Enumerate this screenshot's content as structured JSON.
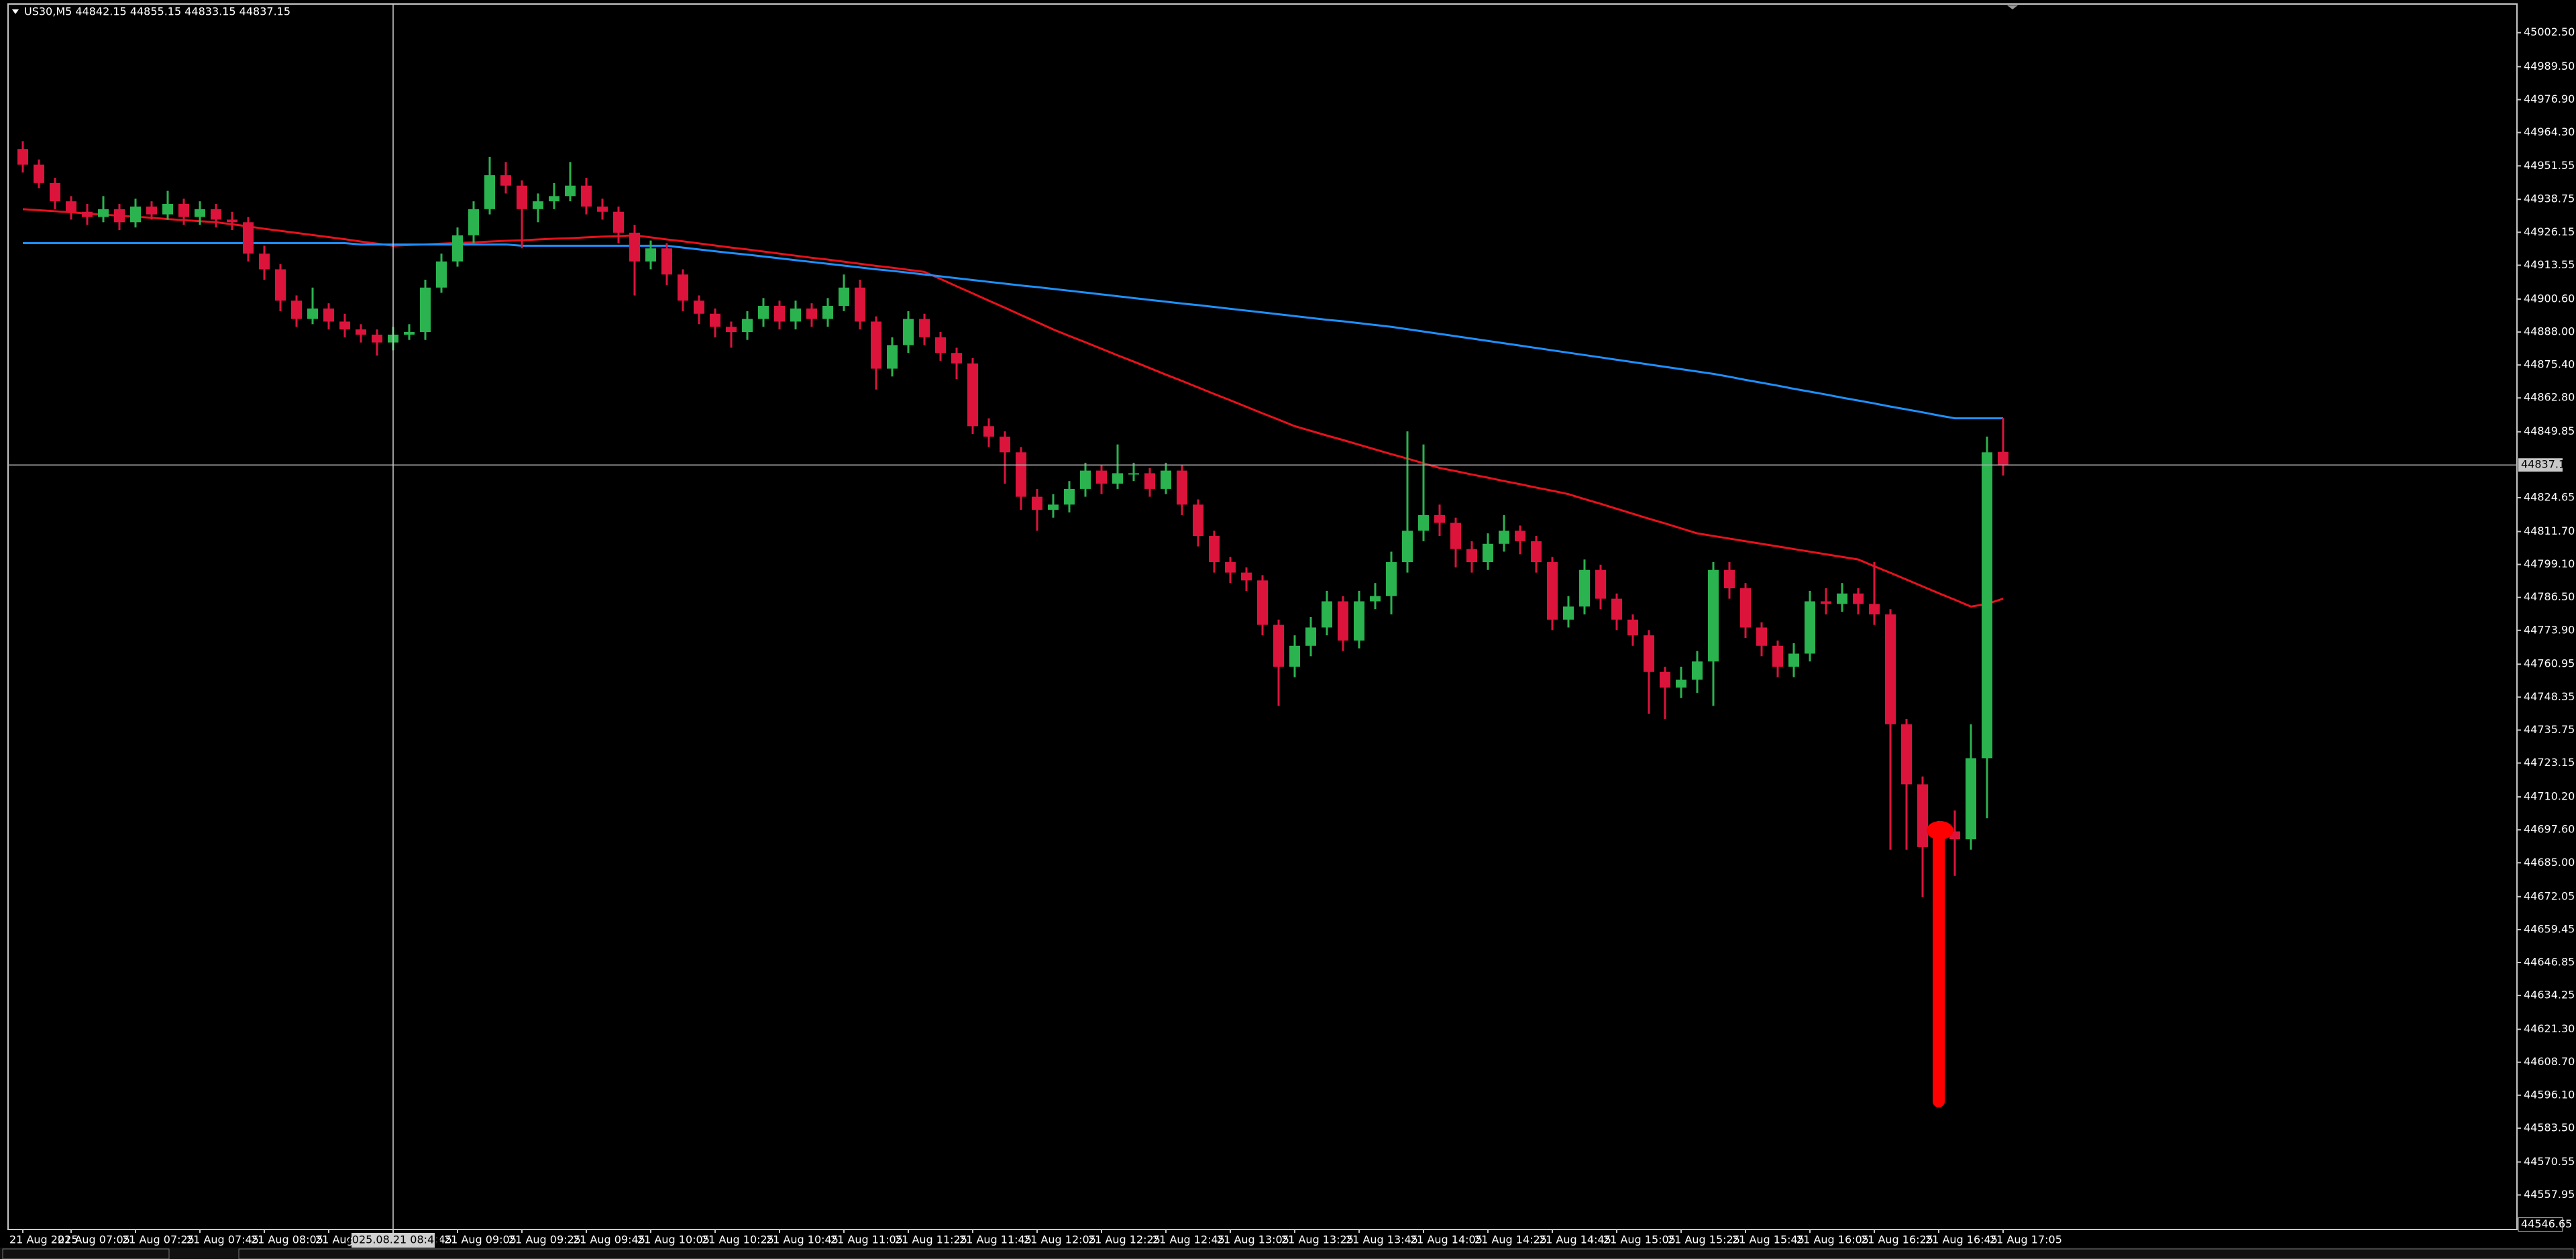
{
  "chart_data": {
    "type": "candlestick",
    "title": "US30,M5  44842.15 44855.15 44833.15 44837.15",
    "up_color": "#2bb34f",
    "down_color": "#dc143c",
    "ylim": [
      44545,
      45013.2
    ],
    "yticks": [
      {
        "value": 45002.5,
        "label": "45002.50"
      },
      {
        "value": 44989.5,
        "label": "44989.50"
      },
      {
        "value": 44976.9,
        "label": "44976.90"
      },
      {
        "value": 44964.3,
        "label": "44964.30"
      },
      {
        "value": 44951.55,
        "label": "44951.55"
      },
      {
        "value": 44938.75,
        "label": "44938.75"
      },
      {
        "value": 44926.15,
        "label": "44926.15"
      },
      {
        "value": 44913.55,
        "label": "44913.55"
      },
      {
        "value": 44900.6,
        "label": "44900.60"
      },
      {
        "value": 44888,
        "label": "44888.00"
      },
      {
        "value": 44875.4,
        "label": "44875.40"
      },
      {
        "value": 44862.8,
        "label": "44862.80"
      },
      {
        "value": 44849.85,
        "label": "44849.85"
      },
      {
        "value": 44824.65,
        "label": "44824.65"
      },
      {
        "value": 44811.7,
        "label": "44811.70"
      },
      {
        "value": 44799.1,
        "label": "44799.10"
      },
      {
        "value": 44786.5,
        "label": "44786.50"
      },
      {
        "value": 44773.9,
        "label": "44773.90"
      },
      {
        "value": 44760.95,
        "label": "44760.95"
      },
      {
        "value": 44748.35,
        "label": "44748.35"
      },
      {
        "value": 44735.75,
        "label": "44735.75"
      },
      {
        "value": 44723.15,
        "label": "44723.15"
      },
      {
        "value": 44710.2,
        "label": "44710.20"
      },
      {
        "value": 44697.6,
        "label": "44697.60"
      },
      {
        "value": 44685,
        "label": "44685.00"
      },
      {
        "value": 44672.05,
        "label": "44672.05"
      },
      {
        "value": 44659.45,
        "label": "44659.45"
      },
      {
        "value": 44646.85,
        "label": "44646.85"
      },
      {
        "value": 44634.25,
        "label": "44634.25"
      },
      {
        "value": 44621.3,
        "label": "44621.30"
      },
      {
        "value": 44608.7,
        "label": "44608.70"
      },
      {
        "value": 44596.1,
        "label": "44596.10"
      },
      {
        "value": 44583.5,
        "label": "44583.50"
      },
      {
        "value": 44570.55,
        "label": "44570.55"
      },
      {
        "value": 44557.95,
        "label": "44557.95"
      }
    ],
    "bid_line": 44837.15,
    "crosshair_price": 44546.65,
    "crosshair_time": "2025.08.21 08:45",
    "crosshair_index": 23,
    "categories": [
      "21 Aug 2025",
      null,
      null,
      "21 Aug 07:05",
      null,
      null,
      null,
      "21 Aug 07:25",
      null,
      null,
      null,
      "21 Aug 07:45",
      null,
      null,
      null,
      "21 Aug 08:05",
      null,
      null,
      null,
      "21 Aug 08:25",
      null,
      null,
      null,
      "21 Aug 08:45",
      null,
      null,
      null,
      "21 Aug 09:05",
      null,
      null,
      null,
      "21 Aug 09:25",
      null,
      null,
      null,
      "21 Aug 09:45",
      null,
      null,
      null,
      "21 Aug 10:05",
      null,
      null,
      null,
      "21 Aug 10:25",
      null,
      null,
      null,
      "21 Aug 10:45",
      null,
      null,
      null,
      "21 Aug 11:05",
      null,
      null,
      null,
      "21 Aug 11:25",
      null,
      null,
      null,
      "21 Aug 11:45",
      null,
      null,
      null,
      "21 Aug 12:05",
      null,
      null,
      null,
      "21 Aug 12:25",
      null,
      null,
      null,
      "21 Aug 12:45",
      null,
      null,
      null,
      "21 Aug 13:05",
      null,
      null,
      null,
      "21 Aug 13:25",
      null,
      null,
      null,
      "21 Aug 13:45",
      null,
      null,
      null,
      "21 Aug 14:05",
      null,
      null,
      null,
      "21 Aug 14:25",
      null,
      null,
      null,
      "21 Aug 14:45",
      null,
      null,
      null,
      "21 Aug 15:05",
      null,
      null,
      null,
      "21 Aug 15:25",
      null,
      null,
      null,
      "21 Aug 15:45",
      null,
      null,
      null,
      "21 Aug 16:05",
      null,
      null,
      null,
      "21 Aug 16:25",
      null,
      null,
      null,
      "21 Aug 16:45",
      null,
      null,
      null,
      "21 Aug 17:05"
    ],
    "candles": [
      [
        44958,
        44961,
        44949,
        44952
      ],
      [
        44952,
        44954,
        44943,
        44945
      ],
      [
        44945,
        44947,
        44935,
        44938
      ],
      [
        44938,
        44940,
        44931,
        44934
      ],
      [
        44934,
        44937,
        44929,
        44932
      ],
      [
        44932,
        44940,
        44930,
        44935
      ],
      [
        44935,
        44937,
        44927,
        44930
      ],
      [
        44930,
        44939,
        44928,
        44936
      ],
      [
        44936,
        44938,
        44931,
        44933
      ],
      [
        44933,
        44942,
        44931,
        44937
      ],
      [
        44937,
        44939,
        44929,
        44932
      ],
      [
        44932,
        44938,
        44929,
        44935
      ],
      [
        44935,
        44937,
        44928,
        44931
      ],
      [
        44931,
        44934,
        44927,
        44930
      ],
      [
        44930,
        44932,
        44915,
        44918
      ],
      [
        44918,
        44921,
        44908,
        44912
      ],
      [
        44912,
        44914,
        44896,
        44900
      ],
      [
        44900,
        44902,
        44890,
        44893
      ],
      [
        44893,
        44905,
        44891,
        44897
      ],
      [
        44897,
        44899,
        44889,
        44892
      ],
      [
        44892,
        44895,
        44886,
        44889
      ],
      [
        44889,
        44891,
        44884,
        44887
      ],
      [
        44887,
        44889,
        44879,
        44884
      ],
      [
        44884,
        44890,
        44881,
        44887
      ],
      [
        44887,
        44891,
        44885,
        44888
      ],
      [
        44888,
        44908,
        44885,
        44905
      ],
      [
        44905,
        44918,
        44903,
        44915
      ],
      [
        44915,
        44928,
        44913,
        44925
      ],
      [
        44925,
        44938,
        44922,
        44935
      ],
      [
        44935,
        44955,
        44933,
        44948
      ],
      [
        44948,
        44953,
        44941,
        44944
      ],
      [
        44944,
        44946,
        44920,
        44935
      ],
      [
        44935,
        44941,
        44930,
        44938
      ],
      [
        44938,
        44945,
        44935,
        44940
      ],
      [
        44940,
        44953,
        44938,
        44944
      ],
      [
        44944,
        44947,
        44933,
        44936
      ],
      [
        44936,
        44939,
        44931,
        44934
      ],
      [
        44934,
        44936,
        44922,
        44926
      ],
      [
        44926,
        44929,
        44902,
        44915
      ],
      [
        44915,
        44923,
        44912,
        44920
      ],
      [
        44920,
        44922,
        44906,
        44910
      ],
      [
        44910,
        44912,
        44896,
        44900
      ],
      [
        44900,
        44902,
        44891,
        44895
      ],
      [
        44895,
        44897,
        44886,
        44890
      ],
      [
        44890,
        44892,
        44882,
        44888
      ],
      [
        44888,
        44896,
        44885,
        44893
      ],
      [
        44893,
        44901,
        44890,
        44898
      ],
      [
        44898,
        44900,
        44889,
        44892
      ],
      [
        44892,
        44900,
        44889,
        44897
      ],
      [
        44897,
        44899,
        44890,
        44893
      ],
      [
        44893,
        44901,
        44890,
        44898
      ],
      [
        44898,
        44910,
        44896,
        44905
      ],
      [
        44905,
        44908,
        44889,
        44892
      ],
      [
        44892,
        44894,
        44866,
        44874
      ],
      [
        44874,
        44886,
        44871,
        44883
      ],
      [
        44883,
        44896,
        44880,
        44893
      ],
      [
        44893,
        44895,
        44883,
        44886
      ],
      [
        44886,
        44888,
        44877,
        44880
      ],
      [
        44880,
        44882,
        44870,
        44876
      ],
      [
        44876,
        44878,
        44849,
        44852
      ],
      [
        44852,
        44855,
        44844,
        44848
      ],
      [
        44848,
        44850,
        44830,
        44842
      ],
      [
        44842,
        44844,
        44820,
        44825
      ],
      [
        44825,
        44828,
        44812,
        44820
      ],
      [
        44820,
        44826,
        44817,
        44822
      ],
      [
        44822,
        44831,
        44819,
        44828
      ],
      [
        44828,
        44838,
        44825,
        44835
      ],
      [
        44835,
        44837,
        44826,
        44830
      ],
      [
        44830,
        44845,
        44828,
        44834
      ],
      [
        44834,
        44838,
        44831,
        44834
      ],
      [
        44834,
        44836,
        44825,
        44828
      ],
      [
        44828,
        44838,
        44826,
        44835
      ],
      [
        44835,
        44837,
        44818,
        44822
      ],
      [
        44822,
        44824,
        44806,
        44810
      ],
      [
        44810,
        44812,
        44796,
        44800
      ],
      [
        44800,
        44802,
        44792,
        44796
      ],
      [
        44796,
        44798,
        44789,
        44793
      ],
      [
        44793,
        44795,
        44772,
        44776
      ],
      [
        44776,
        44778,
        44745,
        44760
      ],
      [
        44760,
        44772,
        44756,
        44768
      ],
      [
        44768,
        44779,
        44764,
        44775
      ],
      [
        44775,
        44789,
        44772,
        44785
      ],
      [
        44785,
        44787,
        44766,
        44770
      ],
      [
        44770,
        44789,
        44767,
        44785
      ],
      [
        44785,
        44792,
        44782,
        44787
      ],
      [
        44787,
        44804,
        44780,
        44800
      ],
      [
        44800,
        44850,
        44796,
        44812
      ],
      [
        44812,
        44845,
        44808,
        44818
      ],
      [
        44818,
        44822,
        44810,
        44815
      ],
      [
        44815,
        44817,
        44798,
        44805
      ],
      [
        44805,
        44808,
        44796,
        44800
      ],
      [
        44800,
        44811,
        44797,
        44807
      ],
      [
        44807,
        44818,
        44804,
        44812
      ],
      [
        44812,
        44814,
        44803,
        44808
      ],
      [
        44808,
        44810,
        44796,
        44800
      ],
      [
        44800,
        44802,
        44774,
        44778
      ],
      [
        44778,
        44787,
        44775,
        44783
      ],
      [
        44783,
        44801,
        44780,
        44797
      ],
      [
        44797,
        44799,
        44782,
        44786
      ],
      [
        44786,
        44788,
        44774,
        44778
      ],
      [
        44778,
        44780,
        44768,
        44772
      ],
      [
        44772,
        44774,
        44742,
        44758
      ],
      [
        44758,
        44760,
        44740,
        44752
      ],
      [
        44752,
        44760,
        44748,
        44755
      ],
      [
        44755,
        44766,
        44750,
        44762
      ],
      [
        44762,
        44800,
        44745,
        44797
      ],
      [
        44797,
        44800,
        44786,
        44790
      ],
      [
        44790,
        44792,
        44771,
        44775
      ],
      [
        44775,
        44777,
        44764,
        44768
      ],
      [
        44768,
        44770,
        44756,
        44760
      ],
      [
        44760,
        44769,
        44756,
        44765
      ],
      [
        44765,
        44789,
        44762,
        44785
      ],
      [
        44785,
        44790,
        44780,
        44784
      ],
      [
        44784,
        44792,
        44781,
        44788
      ],
      [
        44788,
        44790,
        44780,
        44784
      ],
      [
        44784,
        44800,
        44776,
        44780
      ],
      [
        44780,
        44782,
        44690,
        44738
      ],
      [
        44738,
        44740,
        44690,
        44715
      ],
      [
        44715,
        44718,
        44672,
        44691
      ],
      [
        44691,
        44701,
        44685,
        44697
      ],
      [
        44697,
        44705,
        44680,
        44694
      ],
      [
        44694,
        44738,
        44690,
        44725
      ],
      [
        44725,
        44848,
        44702,
        44842
      ],
      [
        44842.15,
        44855.15,
        44833.15,
        44837.15
      ]
    ],
    "lines": [
      {
        "color": "#e8111c",
        "values": [
          44935,
          44934.6,
          44934.2,
          44933.8,
          44933.3,
          44932.9,
          44932.5,
          44932.1,
          44931.7,
          44931.2,
          44930.8,
          44930.4,
          44930,
          44929.2,
          44928.4,
          44927.5,
          44926.7,
          44925.9,
          44925.1,
          44924.3,
          44923.5,
          44922.6,
          44921.8,
          44921,
          44921.3,
          44921.5,
          44921.8,
          44922.1,
          44922.3,
          44922.6,
          44922.9,
          44923.1,
          44923.4,
          44923.7,
          44923.9,
          44924.2,
          44924.5,
          44924.7,
          44925,
          44924.2,
          44923.4,
          44922.7,
          44921.9,
          44921.1,
          44920.3,
          44919.6,
          44918.8,
          44918,
          44917.2,
          44916.4,
          44915.7,
          44914.9,
          44914.1,
          44913.3,
          44912.6,
          44911.8,
          44911,
          44908.3,
          44905.5,
          44902.8,
          44900,
          44897.3,
          44894.5,
          44891.8,
          44889,
          44886.5,
          44884.1,
          44881.6,
          44879.1,
          44876.7,
          44874.2,
          44871.7,
          44869.3,
          44866.8,
          44864.3,
          44861.9,
          44859.4,
          44856.9,
          44854.5,
          44852,
          44850.2,
          44848.4,
          44846.7,
          44844.9,
          44843.1,
          44841.3,
          44839.6,
          44837.8,
          44836,
          44834.8,
          44833.5,
          44832.3,
          44831,
          44829.8,
          44828.5,
          44827.3,
          44826,
          44824.1,
          44822.3,
          44820.4,
          44818.5,
          44816.6,
          44814.8,
          44812.9,
          44811,
          44810,
          44809,
          44808,
          44807,
          44806,
          44805,
          44804,
          44803,
          44802,
          44801,
          44798.4,
          44795.9,
          44793.3,
          44790.7,
          44788.1,
          44785.6,
          44783,
          44784,
          44786
        ]
      },
      {
        "color": "#1e90ff",
        "values": [
          44922,
          44922,
          44922,
          44922,
          44922,
          44922,
          44922,
          44922,
          44922,
          44922,
          44922,
          44922,
          44922,
          44922,
          44922,
          44922,
          44922,
          44922,
          44922,
          44922,
          44922,
          44921.5,
          44921.5,
          44921.5,
          44921.5,
          44921.5,
          44921.5,
          44921.5,
          44921.5,
          44921.5,
          44921.5,
          44921,
          44921,
          44921,
          44921,
          44921,
          44921,
          44921,
          44921,
          44921,
          44921,
          44920.3,
          44919.6,
          44918.9,
          44918.2,
          44917.6,
          44916.9,
          44916.2,
          44915.5,
          44914.8,
          44914.1,
          44913.4,
          44912.7,
          44912,
          44911.4,
          44910.7,
          44910,
          44909.3,
          44908.6,
          44907.9,
          44907.2,
          44906.5,
          44905.8,
          44905.2,
          44904.5,
          44903.8,
          44903.1,
          44902.4,
          44901.7,
          44901,
          44900.3,
          44899.6,
          44898.9,
          44898.3,
          44897.6,
          44896.9,
          44896.2,
          44895.5,
          44894.8,
          44894.1,
          44893.4,
          44892.7,
          44892.1,
          44891.4,
          44890.7,
          44890,
          44889.1,
          44888.2,
          44887.3,
          44886.4,
          44885.5,
          44884.6,
          44883.7,
          44882.8,
          44881.9,
          44881,
          44880.1,
          44879.2,
          44878.3,
          44877.4,
          44876.5,
          44875.6,
          44874.7,
          44873.8,
          44872.9,
          44872,
          44870.9,
          44869.7,
          44868.6,
          44867.5,
          44866.3,
          44865.2,
          44864.1,
          44862.9,
          44861.8,
          44860.7,
          44859.5,
          44858.4,
          44857.3,
          44856.1,
          44855,
          44855,
          44855,
          44855
        ]
      }
    ]
  }
}
